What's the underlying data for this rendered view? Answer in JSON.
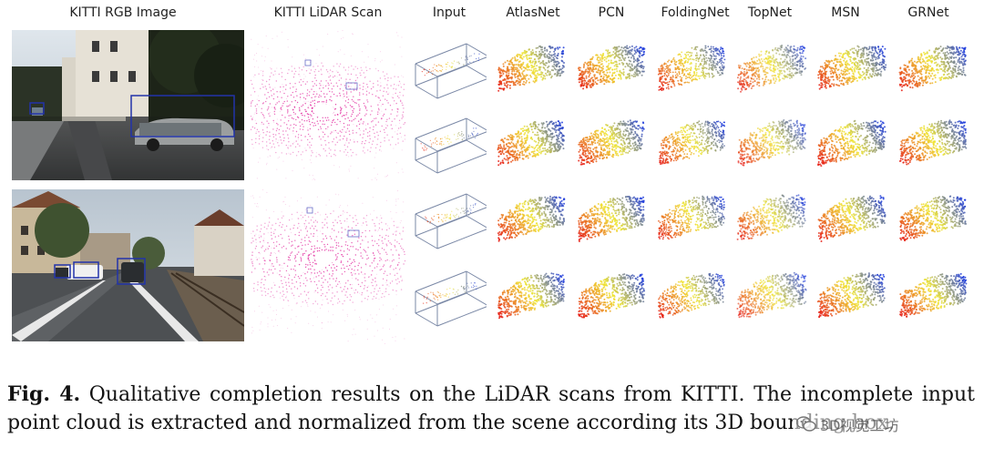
{
  "columns": [
    {
      "key": "rgb",
      "label": "KITTI RGB Image"
    },
    {
      "key": "lidar",
      "label": "KITTI LiDAR Scan"
    },
    {
      "key": "input",
      "label": "Input"
    },
    {
      "key": "atlasnet",
      "label": "AtlasNet"
    },
    {
      "key": "pcn",
      "label": "PCN"
    },
    {
      "key": "foldingnet",
      "label": "FoldingNet"
    },
    {
      "key": "topnet",
      "label": "TopNet"
    },
    {
      "key": "msn",
      "label": "MSN"
    },
    {
      "key": "grnet",
      "label": "GRNet"
    }
  ],
  "caption": {
    "lead": "Fig. 4.",
    "text": "Qualitative completion results on the LiDAR scans from KITTI. The incomplete input point cloud is extracted and normalized from the scene according its 3D bounding box."
  },
  "watermark": {
    "icon": "wechat-icon",
    "text": "3D视觉工坊"
  },
  "colors": {
    "bbox": "#2233aa",
    "lidar": "#e0209a",
    "input_box": "#7a88a6",
    "gradient_near": "#e61e14",
    "gradient_mid": "#f0e632",
    "gradient_far": "#1e3cdc"
  }
}
